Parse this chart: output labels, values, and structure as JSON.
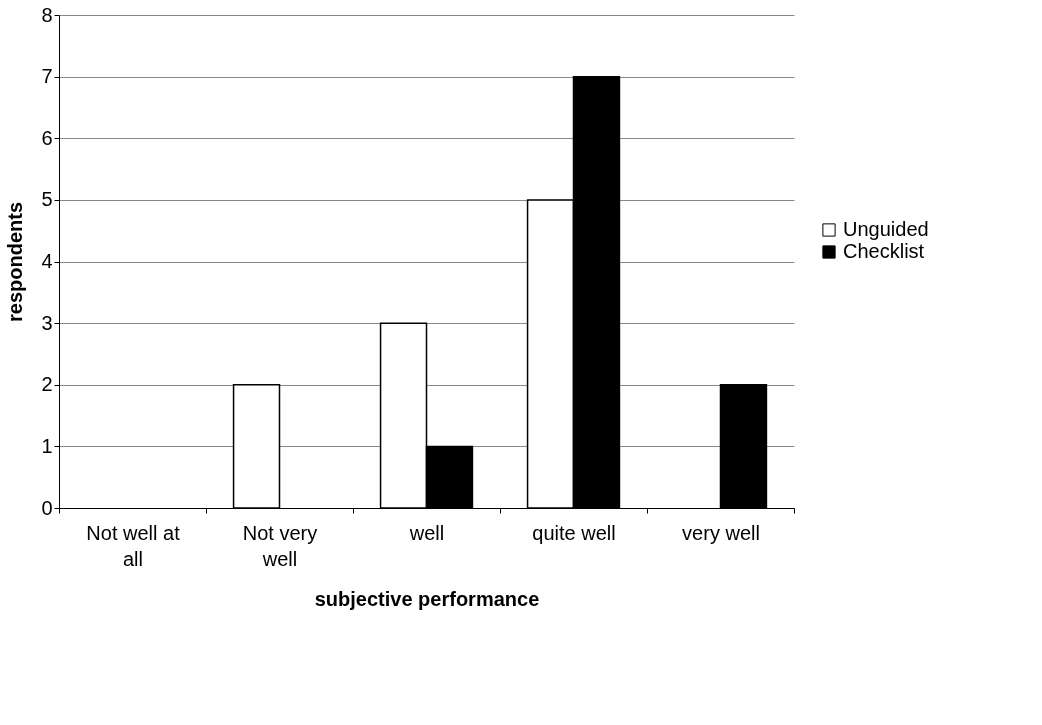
{
  "chart_data": {
    "type": "bar",
    "xlabel": "subjective performance",
    "ylabel": "respondents",
    "categories": [
      "Not well at all",
      "Not very well",
      "well",
      "quite well",
      "very well"
    ],
    "series": [
      {
        "name": "Unguided",
        "color": "#ffffff",
        "values": [
          0,
          2,
          3,
          5,
          0
        ]
      },
      {
        "name": "Checklist",
        "color": "#000000",
        "values": [
          0,
          0,
          1,
          7,
          2
        ]
      }
    ],
    "ylim": [
      0,
      8
    ],
    "yticks": [
      0,
      1,
      2,
      3,
      4,
      5,
      6,
      7,
      8
    ],
    "grid": "y",
    "legend": "right"
  }
}
